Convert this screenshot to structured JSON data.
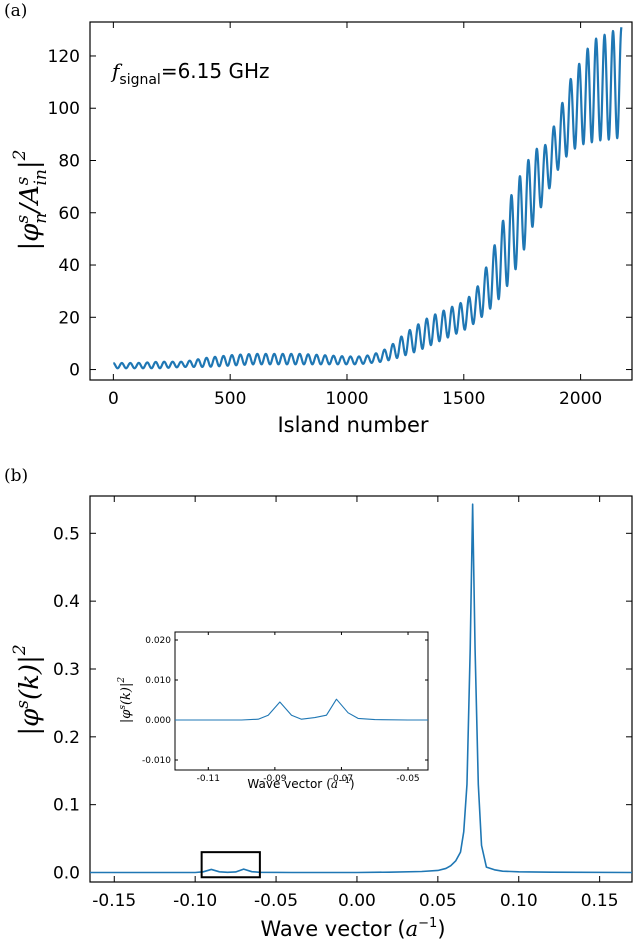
{
  "chart_data": [
    {
      "id": "a",
      "panel_label": "(a)",
      "type": "line",
      "annotation": {
        "f": "f",
        "sub": "signal",
        "rest": "=6.15 GHz"
      },
      "xlabel": "Island number",
      "ylabel": {
        "text": "|φ",
        "sup": "s",
        "sub": "n",
        "mid": "/A",
        "sup2": "s",
        "sub2": "in",
        "end": "|",
        "pow": "2"
      },
      "xlim": [
        -100,
        2220
      ],
      "ylim": [
        -4,
        133
      ],
      "xticks": [
        0,
        500,
        1000,
        1500,
        2000
      ],
      "yticks": [
        0,
        20,
        40,
        60,
        80,
        100,
        120
      ],
      "series": [
        {
          "x": [
            0,
            100,
            200,
            300,
            400,
            500,
            600,
            700,
            800,
            900,
            1000,
            1050,
            1100,
            1150,
            1200,
            1250,
            1300,
            1350,
            1400,
            1450,
            1500,
            1550,
            1600,
            1650,
            1700,
            1750,
            1800,
            1850,
            1900,
            1950,
            2000,
            2050,
            2100,
            2150,
            2175
          ],
          "upper": [
            2.5,
            2.5,
            3,
            3,
            4.5,
            5.5,
            6,
            6,
            6,
            5.5,
            5,
            5,
            5.5,
            7,
            10,
            14,
            17,
            20,
            22,
            24,
            26,
            30,
            40,
            52,
            66,
            76,
            84,
            86,
            96,
            110,
            118,
            126,
            128,
            130,
            131
          ],
          "lower": [
            0.5,
            0.5,
            0.5,
            1,
            1,
            1.5,
            2,
            2,
            2,
            2,
            2,
            2,
            2.5,
            3,
            4,
            5.5,
            7,
            9,
            11,
            13,
            15,
            18,
            22,
            27,
            34,
            44,
            56,
            66,
            76,
            83,
            86,
            87,
            88,
            88,
            90
          ],
          "cycles": 60
        }
      ]
    },
    {
      "id": "b",
      "panel_label": "(b)",
      "type": "line",
      "xlabel": "Wave vector",
      "xlabel_unit": {
        "open": "(",
        "a": "a",
        "sup": "−1",
        "close": ")"
      },
      "ylabel": {
        "text": "|φ",
        "sup": "s",
        "mid": "(k)|",
        "pow": "2"
      },
      "xlim": [
        -0.165,
        0.17
      ],
      "ylim": [
        -0.014,
        0.555
      ],
      "xticks": [
        -0.15,
        -0.1,
        -0.05,
        0.0,
        0.05,
        0.1,
        0.15
      ],
      "xtick_labels": [
        "-0.15",
        "-0.10",
        "-0.05",
        "0.00",
        "0.05",
        "0.10",
        "0.15"
      ],
      "yticks": [
        0.0,
        0.1,
        0.2,
        0.3,
        0.4,
        0.5
      ],
      "ytick_labels": [
        "0.0",
        "0.1",
        "0.2",
        "0.3",
        "0.4",
        "0.5"
      ],
      "series": [
        {
          "x": [
            -0.165,
            -0.12,
            -0.1,
            -0.095,
            -0.09,
            -0.085,
            -0.08,
            -0.075,
            -0.07,
            -0.065,
            -0.06,
            -0.04,
            -0.02,
            0.0,
            0.02,
            0.04,
            0.05,
            0.055,
            0.058,
            0.061,
            0.064,
            0.066,
            0.068,
            0.07,
            0.0715,
            0.073,
            0.075,
            0.077,
            0.08,
            0.085,
            0.09,
            0.1,
            0.12,
            0.17
          ],
          "y": [
            0.0,
            0.0,
            0.0,
            0.001,
            0.0045,
            0.001,
            0.0003,
            0.0008,
            0.005,
            0.0012,
            0.0003,
            0.0,
            0.0,
            0.0,
            0.0005,
            0.0015,
            0.003,
            0.006,
            0.01,
            0.017,
            0.03,
            0.06,
            0.13,
            0.33,
            0.543,
            0.33,
            0.13,
            0.04,
            0.008,
            0.004,
            0.002,
            0.001,
            0.0005,
            0.0
          ]
        }
      ],
      "highlight_box": {
        "x": [
          -0.096,
          -0.06
        ],
        "y": [
          -0.007,
          0.03
        ]
      },
      "inset": {
        "xlabel": "Wave vector",
        "xlabel_unit": {
          "open": "(",
          "a": "a",
          "sup": "−1",
          "close": ")"
        },
        "ylabel": {
          "text": "|φ",
          "sup": "s",
          "mid": "(k)|",
          "pow": "2"
        },
        "xlim": [
          -0.12,
          -0.044
        ],
        "ylim": [
          -0.0125,
          0.022
        ],
        "xticks": [
          -0.11,
          -0.09,
          -0.07,
          -0.05
        ],
        "xtick_labels": [
          "-0.11",
          "-0.09",
          "-0.07",
          "-0.05"
        ],
        "yticks": [
          -0.01,
          0.0,
          0.01,
          0.02
        ],
        "ytick_labels": [
          "-0.010",
          "0.000",
          "0.010",
          "0.020"
        ],
        "series": [
          {
            "x": [
              -0.12,
              -0.1,
              -0.095,
              -0.092,
              -0.0885,
              -0.085,
              -0.082,
              -0.078,
              -0.0745,
              -0.0715,
              -0.068,
              -0.065,
              -0.06,
              -0.05,
              -0.044
            ],
            "y": [
              0.0,
              0.0,
              0.0002,
              0.0012,
              0.0045,
              0.0012,
              0.0002,
              0.0006,
              0.0012,
              0.0052,
              0.0018,
              0.0004,
              0.0001,
              0.0,
              0.0
            ]
          }
        ]
      }
    }
  ],
  "colors": {
    "line": "#1f77b4",
    "axis": "#000000"
  }
}
